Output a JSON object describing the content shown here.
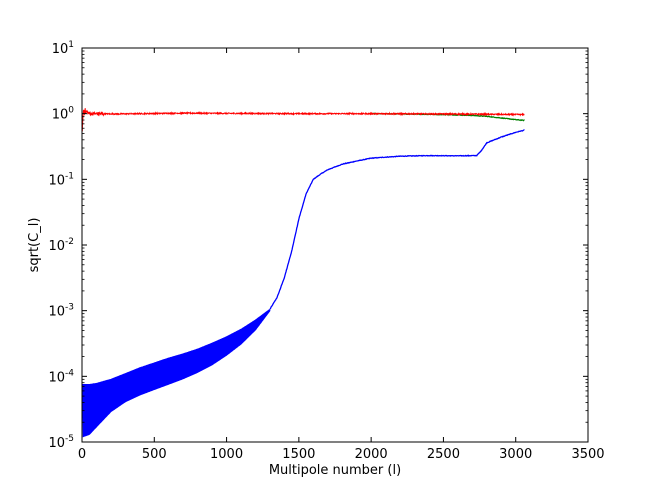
{
  "chart_data": {
    "type": "line",
    "title": "",
    "xlabel": "Multipole number (l)",
    "ylabel": "sqrt(C_l)",
    "xlim": [
      0,
      3500
    ],
    "ylim": [
      1e-05,
      10
    ],
    "yscale": "log",
    "grid": false,
    "legend": "none",
    "xticks": [
      0,
      500,
      1000,
      1500,
      2000,
      2500,
      3000,
      3500
    ],
    "yticks": [
      {
        "value": 1e-05,
        "base": "10",
        "exp": "-5"
      },
      {
        "value": 0.0001,
        "base": "10",
        "exp": "-4"
      },
      {
        "value": 0.001,
        "base": "10",
        "exp": "-3"
      },
      {
        "value": 0.01,
        "base": "10",
        "exp": "-2"
      },
      {
        "value": 0.1,
        "base": "10",
        "exp": "-1"
      },
      {
        "value": 1,
        "base": "10",
        "exp": "0"
      },
      {
        "value": 10,
        "base": "10",
        "exp": "1"
      }
    ],
    "series": [
      {
        "color": "#ff0000",
        "style": "noisy",
        "noise": 0.08,
        "x": [
          2,
          10,
          30,
          60,
          100,
          200,
          400,
          700,
          1000,
          1500,
          2000,
          2500,
          2800,
          3000,
          3060
        ],
        "y": [
          0.6,
          1.15,
          1.05,
          1.0,
          1.0,
          0.99,
          1.0,
          1.02,
          1.01,
          1.0,
          1.0,
          0.99,
          0.98,
          0.97,
          0.97
        ]
      },
      {
        "color": "#008000",
        "style": "line",
        "x": [
          2000,
          2200,
          2500,
          2700,
          2800,
          2900,
          3000,
          3060
        ],
        "y": [
          1.0,
          0.99,
          0.97,
          0.94,
          0.91,
          0.86,
          0.81,
          0.79
        ]
      },
      {
        "color": "#0000ff",
        "style": "band",
        "x": [
          5,
          50,
          100,
          200,
          300,
          400,
          500,
          600,
          700,
          800,
          900,
          1000,
          1100,
          1200,
          1300
        ],
        "y_upper": [
          7.5e-05,
          7.5e-05,
          7.8e-05,
          9e-05,
          0.00011,
          0.000135,
          0.00016,
          0.00019,
          0.00022,
          0.00026,
          0.00032,
          0.0004,
          0.00052,
          0.00072,
          0.00105
        ],
        "y_lower": [
          1.2e-05,
          1.3e-05,
          1.7e-05,
          2.9e-05,
          4.1e-05,
          5.2e-05,
          6.3e-05,
          7.6e-05,
          9.2e-05,
          0.000115,
          0.00015,
          0.00021,
          0.00031,
          0.00051,
          0.001
        ]
      },
      {
        "color": "#0000ff",
        "style": "line",
        "x": [
          1300,
          1350,
          1400,
          1450,
          1500,
          1550,
          1600,
          1650,
          1700,
          1800,
          1900,
          2000,
          2200,
          2400,
          2600,
          2730,
          2760,
          2800,
          2900,
          3000,
          3060
        ],
        "y": [
          0.00105,
          0.0016,
          0.0032,
          0.008,
          0.025,
          0.06,
          0.1,
          0.12,
          0.14,
          0.17,
          0.19,
          0.21,
          0.225,
          0.23,
          0.228,
          0.23,
          0.27,
          0.36,
          0.44,
          0.52,
          0.56
        ]
      }
    ]
  }
}
